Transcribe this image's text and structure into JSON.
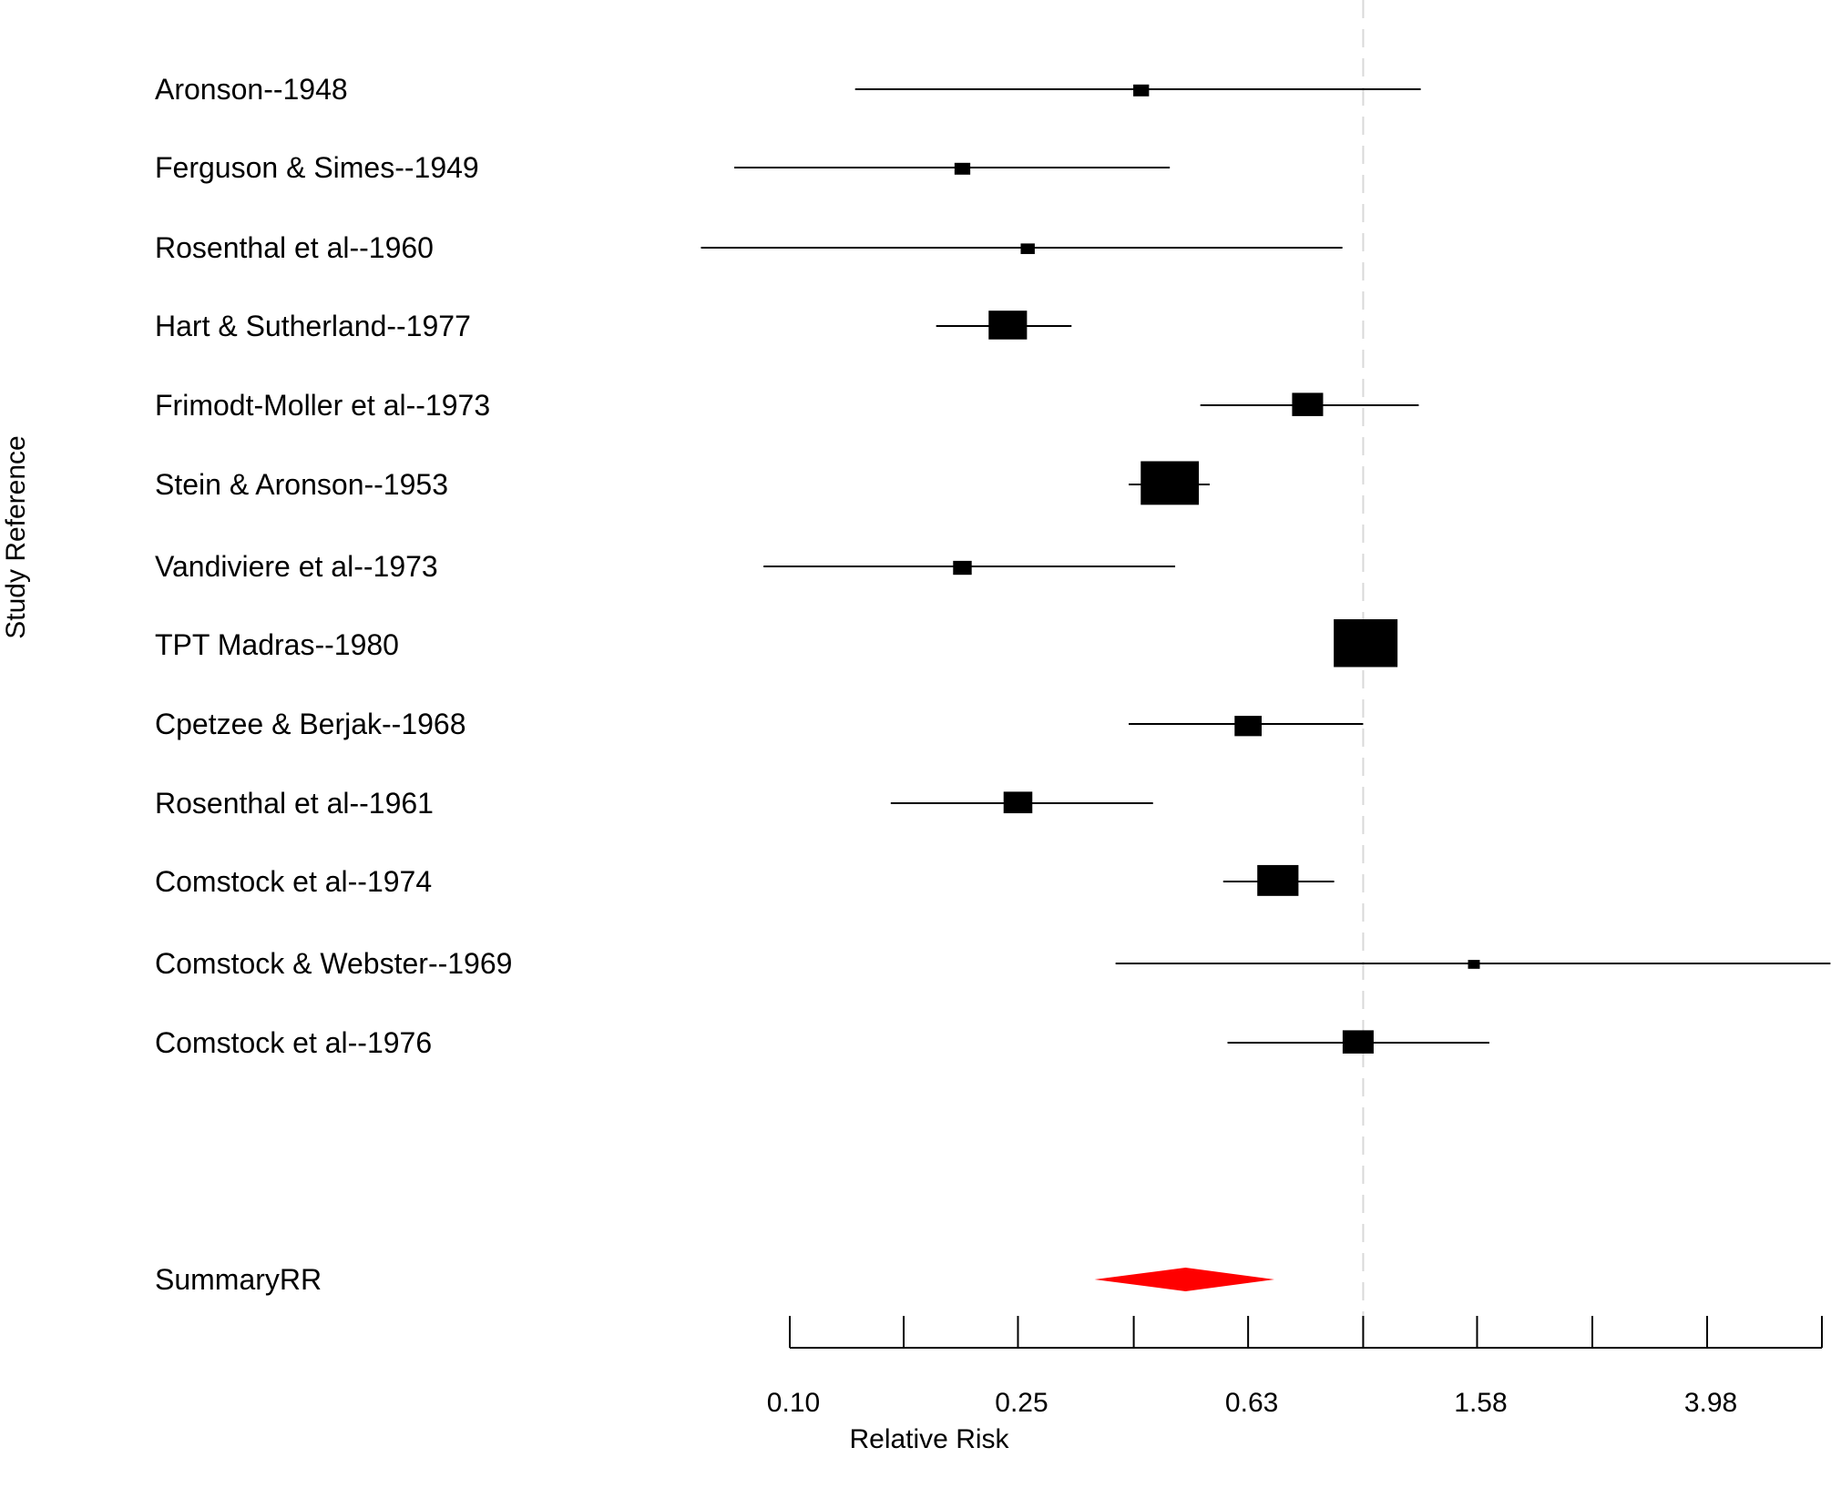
{
  "chart_data": {
    "type": "forest",
    "xlabel": "Relative Risk",
    "ylabel": "Study Reference",
    "x_scale": "log",
    "xlim": [
      0.1,
      6.31
    ],
    "reference_line": 1.0,
    "tick_values": [
      0.1,
      0.158,
      0.25,
      0.398,
      0.63,
      1.0,
      1.58,
      2.51,
      3.98,
      6.31
    ],
    "tick_labels": [
      {
        "value": 0.1,
        "label": "0.10"
      },
      {
        "value": 0.25,
        "label": "0.25"
      },
      {
        "value": 0.63,
        "label": "0.63"
      },
      {
        "value": 1.58,
        "label": "1.58"
      },
      {
        "value": 3.98,
        "label": "3.98"
      }
    ],
    "studies": [
      {
        "label": "Aronson--1948",
        "rr": 0.41,
        "lower": 0.13,
        "upper": 1.26,
        "weight": 0.15
      },
      {
        "label": "Ferguson & Simes--1949",
        "rr": 0.2,
        "lower": 0.08,
        "upper": 0.46,
        "weight": 0.15
      },
      {
        "label": "Rosenthal et al--1960",
        "rr": 0.26,
        "lower": 0.07,
        "upper": 0.92,
        "weight": 0.12
      },
      {
        "label": "Hart & Sutherland--1977",
        "rr": 0.24,
        "lower": 0.18,
        "upper": 0.31,
        "weight": 0.55
      },
      {
        "label": "Frimodt-Moller et al--1973",
        "rr": 0.8,
        "lower": 0.52,
        "upper": 1.25,
        "weight": 0.42
      },
      {
        "label": "Stein & Aronson--1953",
        "rr": 0.46,
        "lower": 0.39,
        "upper": 0.54,
        "weight": 0.9
      },
      {
        "label": "Vandiviere et al--1973",
        "rr": 0.2,
        "lower": 0.09,
        "upper": 0.47,
        "weight": 0.2
      },
      {
        "label": "TPT Madras--1980",
        "rr": 1.01,
        "lower": 0.89,
        "upper": 1.12,
        "weight": 1.0
      },
      {
        "label": "Cpetzee & Berjak--1968",
        "rr": 0.63,
        "lower": 0.39,
        "upper": 1.0,
        "weight": 0.35
      },
      {
        "label": "Rosenthal et al--1961",
        "rr": 0.25,
        "lower": 0.15,
        "upper": 0.43,
        "weight": 0.38
      },
      {
        "label": "Comstock et al--1974",
        "rr": 0.71,
        "lower": 0.57,
        "upper": 0.89,
        "weight": 0.6
      },
      {
        "label": "Comstock & Webster--1969",
        "rr": 1.56,
        "lower": 0.37,
        "upper": 6.53,
        "weight": 0.08
      },
      {
        "label": "Comstock et al--1976",
        "rr": 0.98,
        "lower": 0.58,
        "upper": 1.66,
        "weight": 0.42
      }
    ],
    "summary": {
      "label": "SummaryRR",
      "rr": 0.49,
      "lower": 0.34,
      "upper": 0.7
    },
    "colors": {
      "summary": "#ff0000",
      "marks": "#000000",
      "reference_line": "#d9d9d9"
    }
  }
}
